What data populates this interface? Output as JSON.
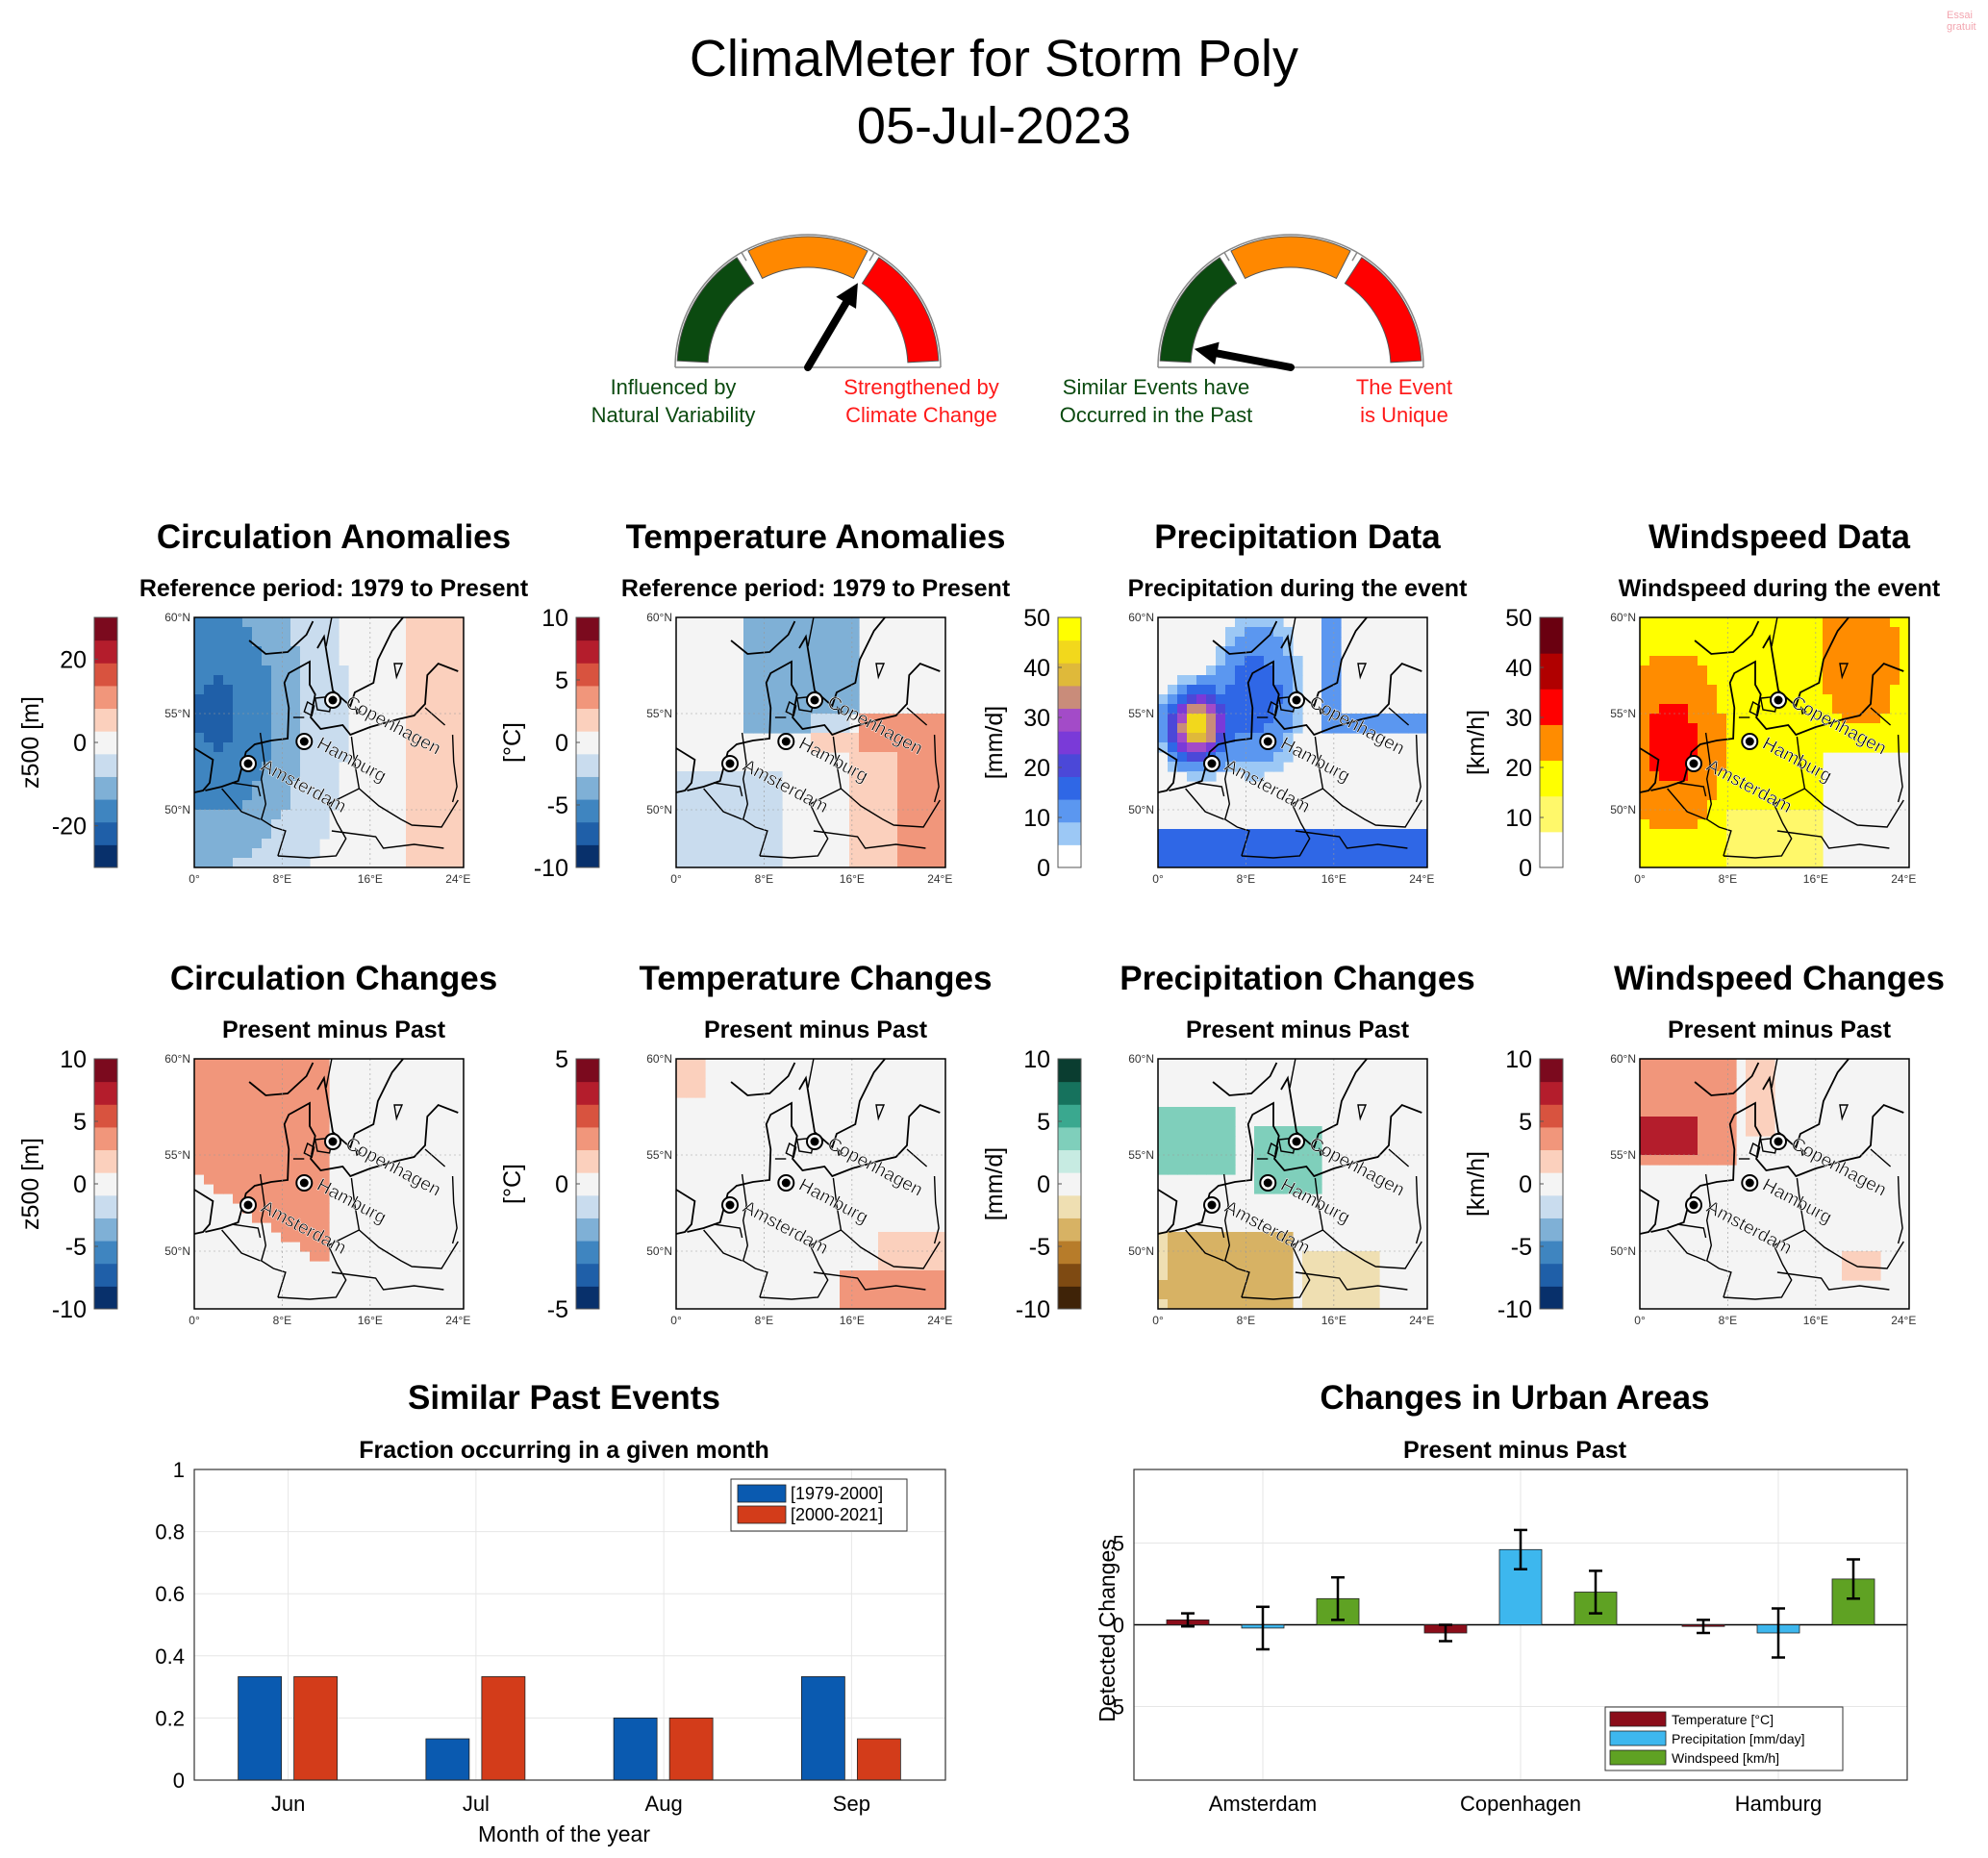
{
  "title": {
    "line1": "ClimaMeter for Storm Poly",
    "line2": "05-Jul-2023"
  },
  "watermark": "Essai gratuit",
  "gauges": [
    {
      "value_fraction": 0.67,
      "left_label": [
        "Influenced by",
        "Natural Variability"
      ],
      "right_label": [
        "Strengthened by",
        "Climate Change"
      ],
      "colors": [
        "#0b4a10",
        "#ff8800",
        "#ff0000"
      ]
    },
    {
      "value_fraction": 0.06,
      "left_label": [
        "Similar Events have",
        "Occurred in the Past"
      ],
      "right_label": [
        "The Event",
        "is Unique"
      ],
      "colors": [
        "#0b4a10",
        "#ff8800",
        "#ff0000"
      ]
    }
  ],
  "maps": {
    "lat_ticks": [
      "60°N",
      "55°N",
      "50°N"
    ],
    "lon_ticks": [
      "0°",
      "8°E",
      "16°E",
      "24°E"
    ],
    "cities": [
      "Amsterdam",
      "Hamburg",
      "Copenhagen"
    ],
    "rows": [
      [
        {
          "title": "Circulation Anomalies",
          "subtitle": "Reference period: 1979 to Present",
          "cbar_label": "z500 [m]",
          "ticks": [
            "20",
            "0",
            "-20"
          ],
          "palette": "div",
          "field": "circ_anom"
        },
        {
          "title": "Temperature Anomalies",
          "subtitle": "Reference period: 1979 to Present",
          "cbar_label": "[°C]",
          "ticks": [
            "10",
            "5",
            "0",
            "-5",
            "-10"
          ],
          "palette": "div",
          "field": "temp_anom"
        },
        {
          "title": "Precipitation Data",
          "subtitle": "Precipitation during the event",
          "cbar_label": "[mm/d]",
          "ticks": [
            "50",
            "40",
            "30",
            "20",
            "10",
            "0"
          ],
          "palette": "precip",
          "field": "precip"
        },
        {
          "title": "Windspeed Data",
          "subtitle": "Windspeed during the event",
          "cbar_label": "[km/h]",
          "ticks": [
            "50",
            "40",
            "30",
            "20",
            "10",
            "0"
          ],
          "palette": "wind",
          "field": "wind"
        }
      ],
      [
        {
          "title": "Circulation Changes",
          "subtitle": "Present minus Past",
          "cbar_label": "z500 [m]",
          "ticks": [
            "10",
            "5",
            "0",
            "-5",
            "-10"
          ],
          "palette": "div",
          "field": "circ_chg"
        },
        {
          "title": "Temperature Changes",
          "subtitle": "Present minus Past",
          "cbar_label": "[°C]",
          "ticks": [
            "5",
            "",
            "0",
            "",
            "-5"
          ],
          "palette": "div",
          "field": "temp_chg"
        },
        {
          "title": "Precipitation Changes",
          "subtitle": "Present minus Past",
          "cbar_label": "[mm/d]",
          "ticks": [
            "10",
            "5",
            "0",
            "-5",
            "-10"
          ],
          "palette": "brbg",
          "field": "precip_chg"
        },
        {
          "title": "Windspeed Changes",
          "subtitle": "Present minus Past",
          "cbar_label": "[km/h]",
          "ticks": [
            "10",
            "5",
            "0",
            "-5",
            "-10"
          ],
          "palette": "div",
          "field": "wind_chg"
        }
      ]
    ]
  },
  "colors": {
    "div": [
      "#08306b",
      "#1f5fa8",
      "#3f85c0",
      "#7fb0d6",
      "#c9dcee",
      "#f4f4f4",
      "#fbd0bd",
      "#f1967b",
      "#d8533f",
      "#b41d2c",
      "#7b0a1e"
    ],
    "precip": [
      "#ffffff",
      "#9cc8f5",
      "#5b97f0",
      "#2f67e6",
      "#4b48d8",
      "#7a3ad8",
      "#a34bc8",
      "#c98c7a",
      "#dfb93a",
      "#f2d81c",
      "#ffff00"
    ],
    "wind": [
      "#ffffff",
      "#fff86a",
      "#ffff00",
      "#ff8c00",
      "#ff0000",
      "#b00000",
      "#6a0010"
    ],
    "brbg": [
      "#3f2308",
      "#7e4a12",
      "#b77c2a",
      "#d7b264",
      "#efdfb2",
      "#f4f4f4",
      "#c7ebe2",
      "#7fcfbb",
      "#3aa88f",
      "#16725d",
      "#0a3d30"
    ]
  },
  "chart_data": [
    {
      "type": "bar",
      "title": "Similar Past Events",
      "subtitle": "Fraction occurring in a given month",
      "xlabel": "Month of the year",
      "ylabel": "",
      "categories": [
        "Jun",
        "Jul",
        "Aug",
        "Sep"
      ],
      "ylim": [
        0,
        1
      ],
      "yticks": [
        "0",
        "0.2",
        "0.4",
        "0.6",
        "0.8",
        "1"
      ],
      "grid": true,
      "legend": "top-right",
      "series": [
        {
          "name": "[1979-2000]",
          "color": "#0a5ab0",
          "values": [
            0.333,
            0.133,
            0.2,
            0.333
          ]
        },
        {
          "name": "[2000-2021]",
          "color": "#d33c1a",
          "values": [
            0.333,
            0.333,
            0.2,
            0.133
          ]
        }
      ]
    },
    {
      "type": "bar",
      "title": "Changes in Urban Areas",
      "subtitle": "Present minus Past",
      "xlabel": "",
      "ylabel": "Detected Changes",
      "categories": [
        "Amsterdam",
        "Copenhagen",
        "Hamburg"
      ],
      "ylim": [
        -9.5,
        9.5
      ],
      "yticks": [
        "-5",
        "0",
        "5"
      ],
      "grid": true,
      "legend": "bottom-right",
      "series": [
        {
          "name": "Temperature [°C]",
          "color": "#8b0d1a",
          "values": [
            0.3,
            -0.5,
            -0.1
          ],
          "err": [
            0.4,
            0.5,
            0.4
          ]
        },
        {
          "name": "Precipitation [mm/day]",
          "color": "#3db7ee",
          "values": [
            -0.2,
            4.6,
            -0.5
          ],
          "err": [
            1.3,
            1.2,
            1.5
          ]
        },
        {
          "name": "Windspeed [km/h]",
          "color": "#5fa223",
          "values": [
            1.6,
            2.0,
            2.8
          ],
          "err": [
            1.3,
            1.3,
            1.2
          ]
        }
      ]
    }
  ]
}
